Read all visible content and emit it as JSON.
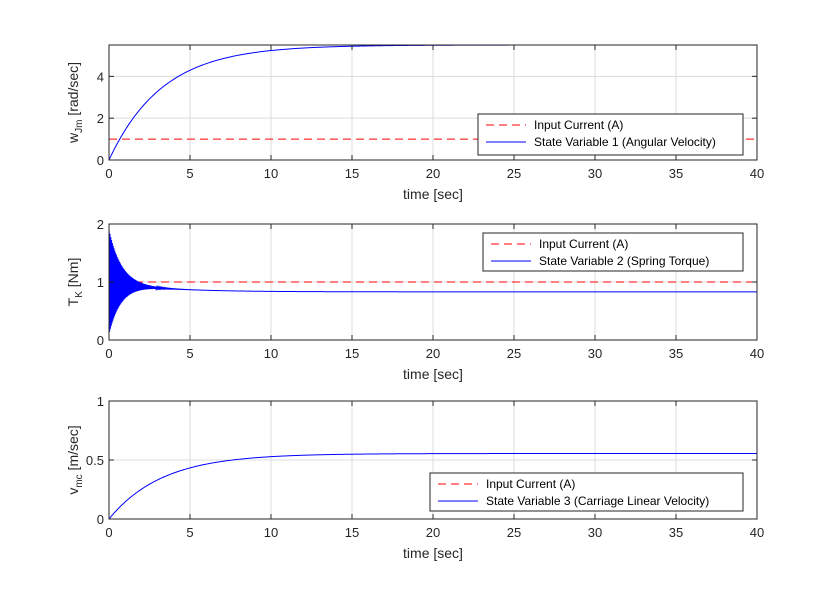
{
  "colors": {
    "input": "#ff0000",
    "state": "#0000ff",
    "grid": "#dcdcdc",
    "axis": "#262626"
  },
  "chart_data": [
    {
      "type": "line",
      "xlabel": "time [sec]",
      "ylabel": {
        "main": "w",
        "sub": "Jm",
        "unit": " [rad/sec]"
      },
      "xlim": [
        0,
        40
      ],
      "ylim": [
        0,
        5.5
      ],
      "xticks": [
        "0",
        "5",
        "10",
        "15",
        "20",
        "25",
        "30",
        "35",
        "40"
      ],
      "yticks": [
        "0",
        "2",
        "4"
      ],
      "grid": true,
      "legend_position": "bottom-right",
      "series": [
        {
          "name": "Input Current (A)",
          "style": "dashed",
          "color": "#ff0000",
          "constant": 1
        },
        {
          "name": "State Variable 1 (Angular Velocity)",
          "style": "solid",
          "color": "#0000ff",
          "model": "first-order",
          "final": 5.5,
          "tau": 3.3
        }
      ]
    },
    {
      "type": "line",
      "xlabel": "time [sec]",
      "ylabel": {
        "main": "T",
        "sub": "K",
        "unit": " [Nm]"
      },
      "xlim": [
        0,
        40
      ],
      "ylim": [
        0,
        2
      ],
      "xticks": [
        "0",
        "5",
        "10",
        "15",
        "20",
        "25",
        "30",
        "35",
        "40"
      ],
      "yticks": [
        "0",
        "1",
        "2"
      ],
      "grid": true,
      "legend_position": "top-right",
      "series": [
        {
          "name": "Input Current (A)",
          "style": "dashed",
          "color": "#ff0000",
          "constant": 1
        },
        {
          "name": "State Variable 2 (Spring Torque)",
          "style": "solid",
          "color": "#0000ff",
          "model": "damped-oscillation",
          "final": 0.83,
          "initial_offset": 0.17,
          "tau": 3.3,
          "osc_amplitude": 0.95,
          "osc_decay": 0.75
        }
      ]
    },
    {
      "type": "line",
      "xlabel": "time [sec]",
      "ylabel": {
        "main": "v",
        "sub": "mc",
        "unit": " [m/sec]"
      },
      "xlim": [
        0,
        40
      ],
      "ylim": [
        0,
        1
      ],
      "xticks": [
        "0",
        "5",
        "10",
        "15",
        "20",
        "25",
        "30",
        "35",
        "40"
      ],
      "yticks": [
        "0",
        "0.5",
        "1"
      ],
      "grid": true,
      "legend_position": "bottom-right",
      "series": [
        {
          "name": "Input Current (A)",
          "style": "dashed",
          "color": "#ff0000",
          "constant": 1
        },
        {
          "name": "State Variable 3 (Carriage Linear Velocity)",
          "style": "solid",
          "color": "#0000ff",
          "model": "first-order",
          "final": 0.555,
          "tau": 3.3
        }
      ]
    }
  ]
}
